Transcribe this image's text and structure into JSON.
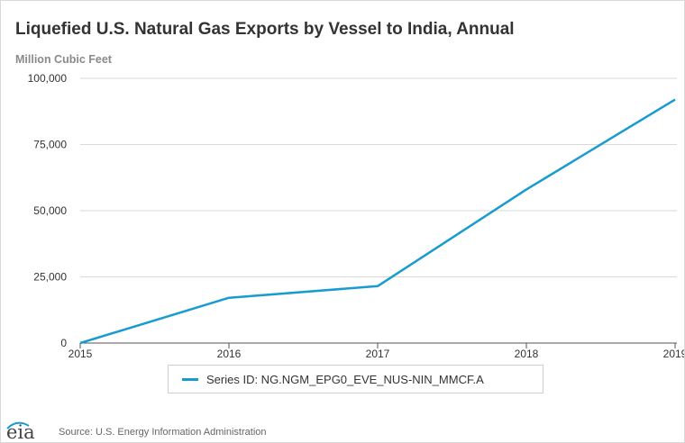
{
  "chart_data": {
    "type": "line",
    "title": "Liquefied U.S. Natural Gas Exports by Vessel to India, Annual",
    "ylabel": "Million Cubic Feet",
    "xlabel": "",
    "x": [
      2015,
      2016,
      2017,
      2018,
      2019
    ],
    "series": [
      {
        "name": "Series ID: NG.NGM_EPG0_EVE_NUS-NIN_MMCF.A",
        "values": [
          0,
          17100,
          21500,
          58000,
          92000
        ],
        "color": "#189bd0"
      }
    ],
    "ylim": [
      0,
      100000
    ],
    "yticks": [
      0,
      25000,
      50000,
      75000,
      100000
    ],
    "ytick_labels": [
      "0",
      "25,000",
      "50,000",
      "75,000",
      "100,000"
    ],
    "xtick_labels": [
      "2015",
      "2016",
      "2017",
      "2018",
      "2019"
    ],
    "grid": true,
    "legend": "bottom-center"
  },
  "footer": {
    "logo_text": "eia",
    "source": "Source: U.S. Energy Information Administration"
  }
}
